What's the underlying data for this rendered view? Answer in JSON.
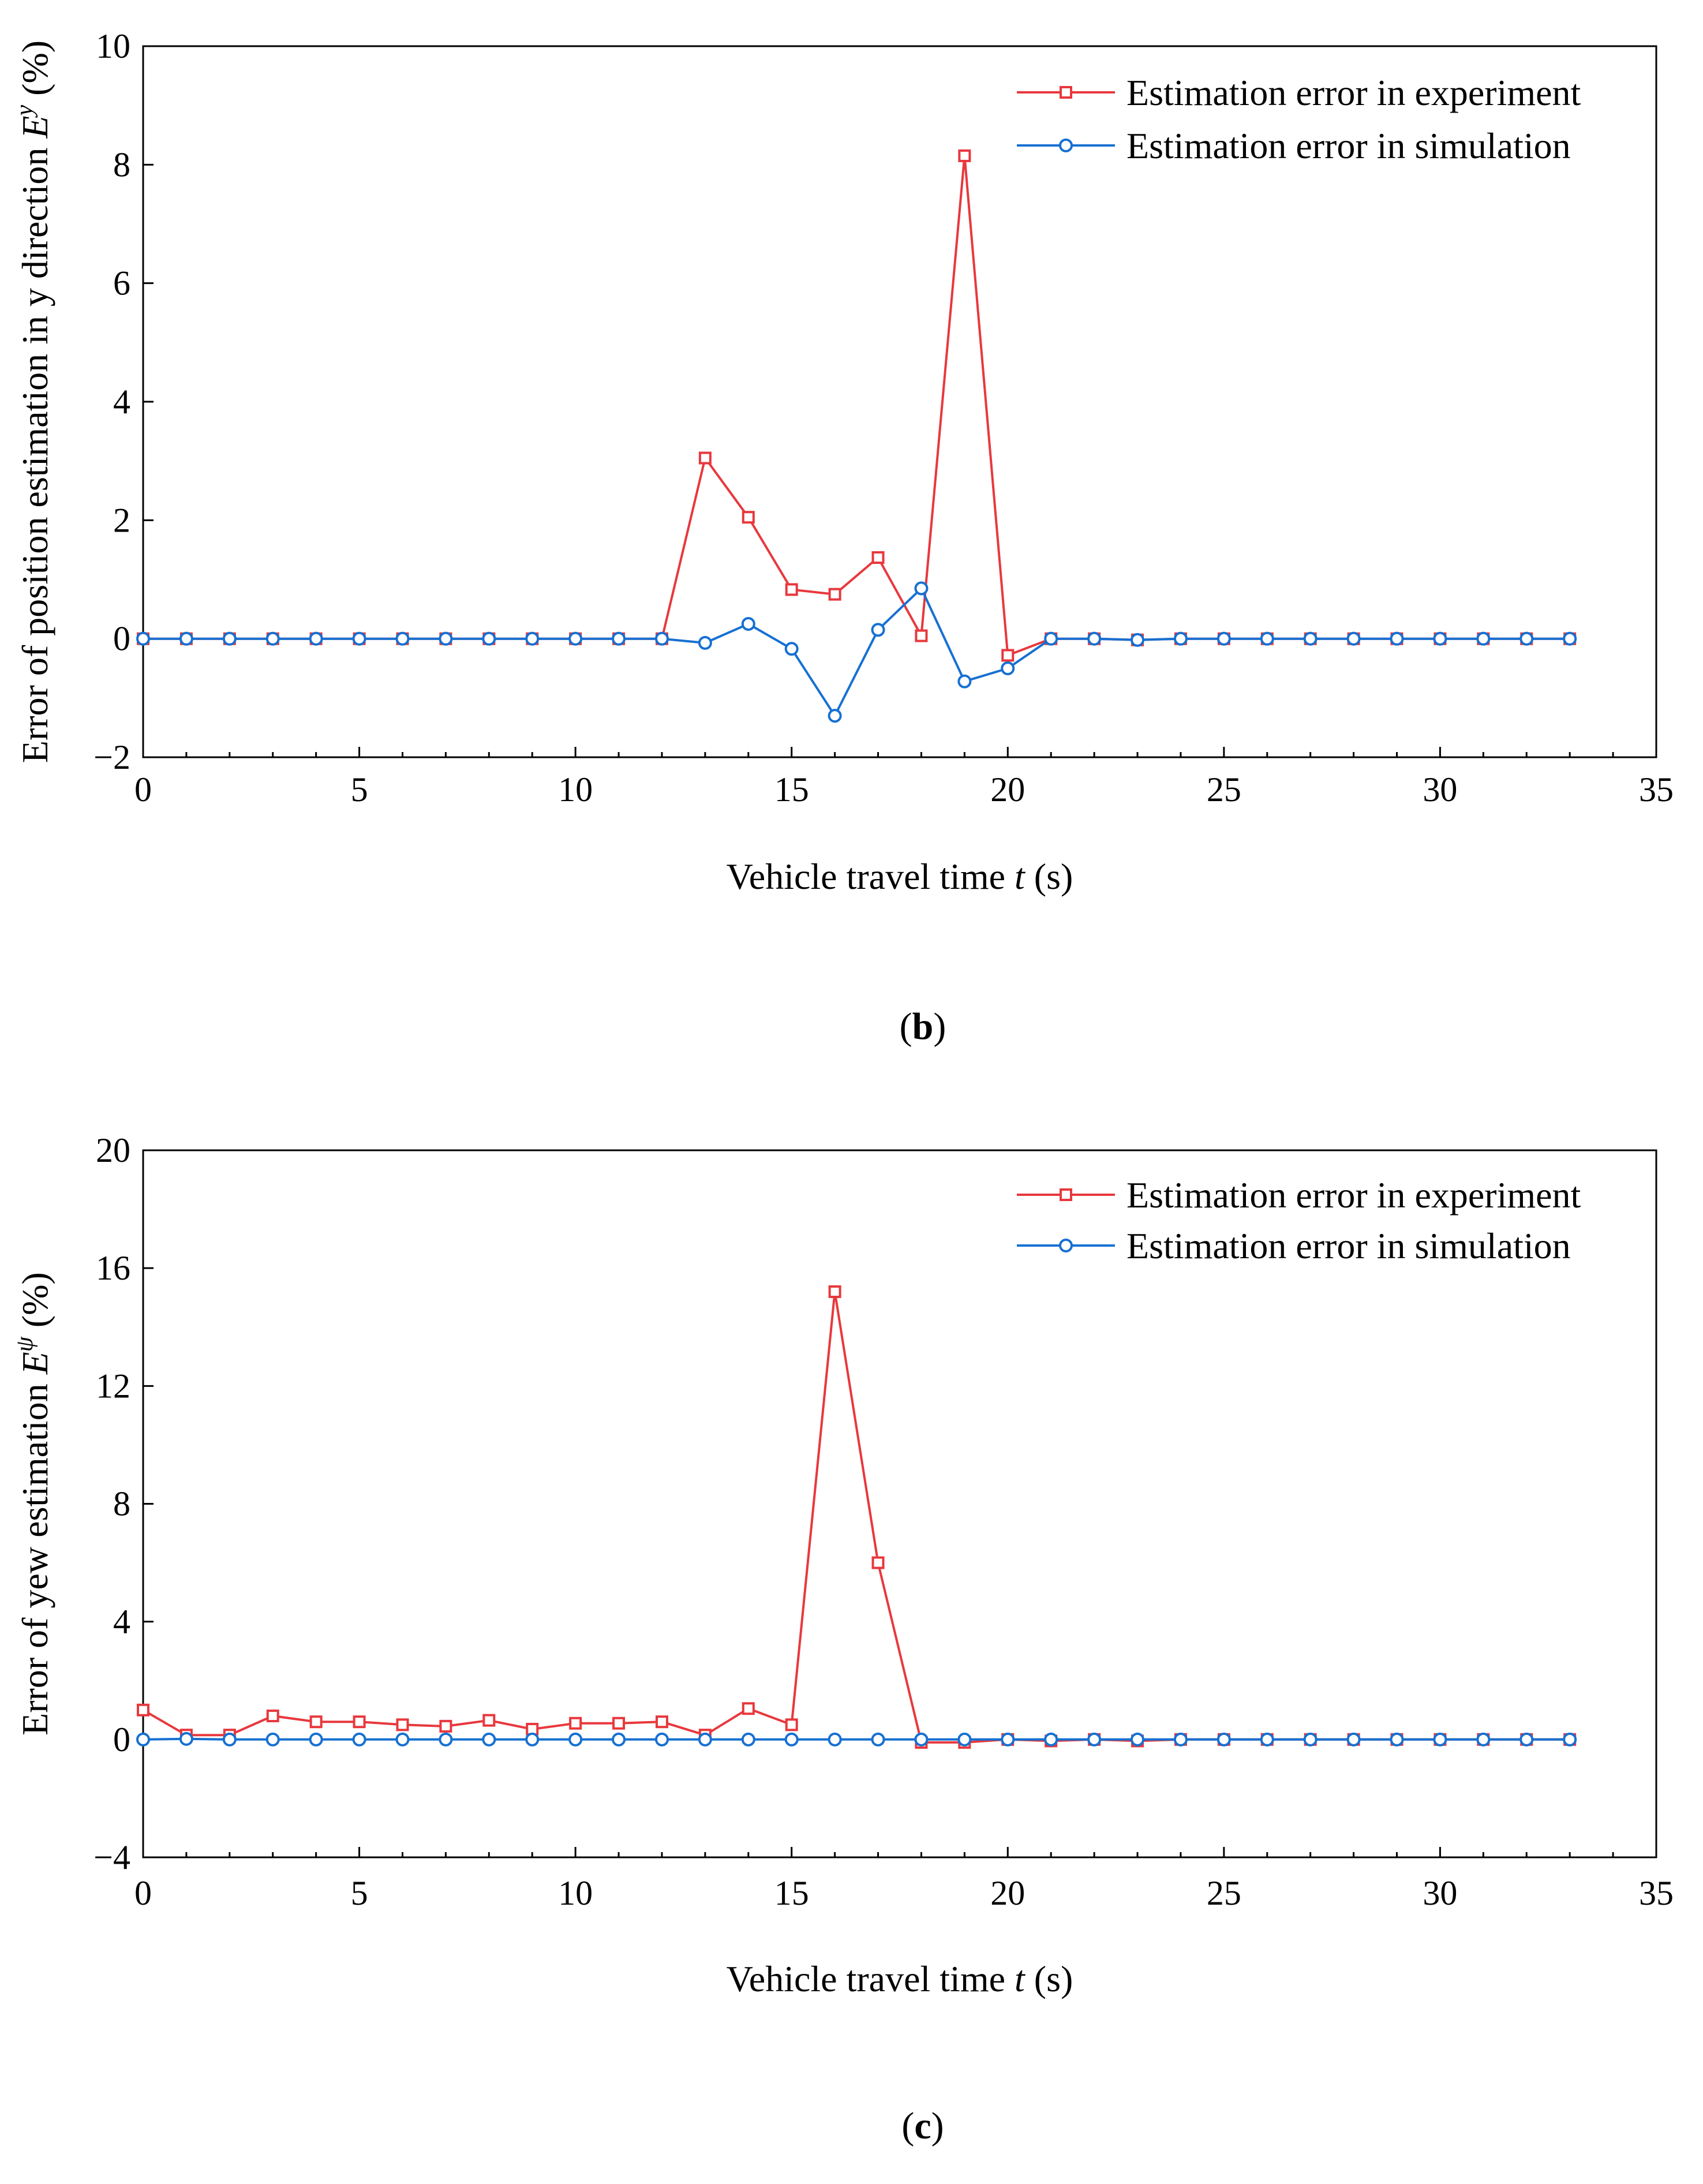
{
  "chart_data": [
    {
      "type": "line",
      "panel_label": "b",
      "xlabel_prefix": "Vehicle travel time ",
      "xlabel_var": "t",
      "xlabel_suffix": " (s)",
      "ylabel_prefix": "Error of position estimation in y direction ",
      "ylabel_var": "E",
      "ylabel_sup": "y",
      "ylabel_suffix": " (%)",
      "xlim": [
        0,
        35
      ],
      "ylim": [
        -2,
        10
      ],
      "xticks": [
        0,
        5,
        10,
        15,
        20,
        25,
        30,
        35
      ],
      "yticks": [
        -2,
        0,
        2,
        4,
        6,
        8,
        10
      ],
      "ytick_labels": [
        "−2",
        "0",
        "2",
        "4",
        "6",
        "8",
        "10"
      ],
      "legend_position": "top-right",
      "x": [
        0,
        1,
        2,
        3,
        4,
        5,
        6,
        7,
        8,
        9,
        10,
        11,
        12,
        13,
        14,
        15,
        16,
        17,
        18,
        19,
        20,
        21,
        22,
        23,
        24,
        25,
        26,
        27,
        28,
        29,
        30,
        31,
        32,
        33
      ],
      "series": [
        {
          "name": "Estimation error in experiment",
          "color": "#e8383d",
          "marker": "square",
          "values": [
            0,
            0,
            0,
            0,
            0,
            0,
            0,
            0,
            0,
            0,
            0,
            0,
            0,
            3.05,
            2.05,
            0.83,
            0.75,
            1.37,
            0.05,
            8.15,
            -0.28,
            0,
            0,
            -0.02,
            0,
            0,
            0,
            0,
            0,
            0,
            0,
            0,
            0,
            0
          ]
        },
        {
          "name": "Estimation error in simulation",
          "color": "#1670d2",
          "marker": "circle",
          "values": [
            0,
            0,
            0,
            0,
            0,
            0,
            0,
            0,
            0,
            0,
            0,
            0,
            0,
            -0.07,
            0.25,
            -0.17,
            -1.3,
            0.15,
            0.85,
            -0.72,
            -0.5,
            0,
            0,
            -0.02,
            0,
            0,
            0,
            0,
            0,
            0,
            0,
            0,
            0,
            0
          ]
        }
      ]
    },
    {
      "type": "line",
      "panel_label": "c",
      "xlabel_prefix": "Vehicle travel time ",
      "xlabel_var": "t",
      "xlabel_suffix": " (s)",
      "ylabel_prefix": "Error of yew estimation ",
      "ylabel_var": "E",
      "ylabel_sup": "ψ",
      "ylabel_suffix": " (%)",
      "xlim": [
        0,
        35
      ],
      "ylim": [
        -4,
        20
      ],
      "xticks": [
        0,
        5,
        10,
        15,
        20,
        25,
        30,
        35
      ],
      "yticks": [
        -4,
        0,
        4,
        8,
        12,
        16,
        20
      ],
      "ytick_labels": [
        "−4",
        "0",
        "4",
        "8",
        "12",
        "16",
        "20"
      ],
      "legend_position": "top-right",
      "x": [
        0,
        1,
        2,
        3,
        4,
        5,
        6,
        7,
        8,
        9,
        10,
        11,
        12,
        13,
        14,
        15,
        16,
        17,
        18,
        19,
        20,
        21,
        22,
        23,
        24,
        25,
        26,
        27,
        28,
        29,
        30,
        31,
        32,
        33
      ],
      "series": [
        {
          "name": "Estimation error in experiment",
          "color": "#e8383d",
          "marker": "square",
          "values": [
            1.0,
            0.15,
            0.15,
            0.8,
            0.6,
            0.6,
            0.5,
            0.45,
            0.65,
            0.35,
            0.55,
            0.55,
            0.6,
            0.15,
            1.05,
            0.5,
            15.2,
            6.0,
            -0.1,
            -0.1,
            0,
            -0.05,
            0,
            -0.05,
            0,
            0,
            0,
            0,
            0,
            0,
            0,
            0,
            0,
            0
          ]
        },
        {
          "name": "Estimation error in simulation",
          "color": "#1670d2",
          "marker": "circle",
          "values": [
            0,
            0.02,
            0,
            0,
            0,
            0,
            0,
            0,
            0,
            0,
            0,
            0,
            0,
            0,
            0,
            0,
            0,
            0,
            0,
            0,
            0,
            0,
            0,
            0,
            0,
            0,
            0,
            0,
            0,
            0,
            0,
            0,
            0,
            0
          ]
        }
      ]
    }
  ]
}
